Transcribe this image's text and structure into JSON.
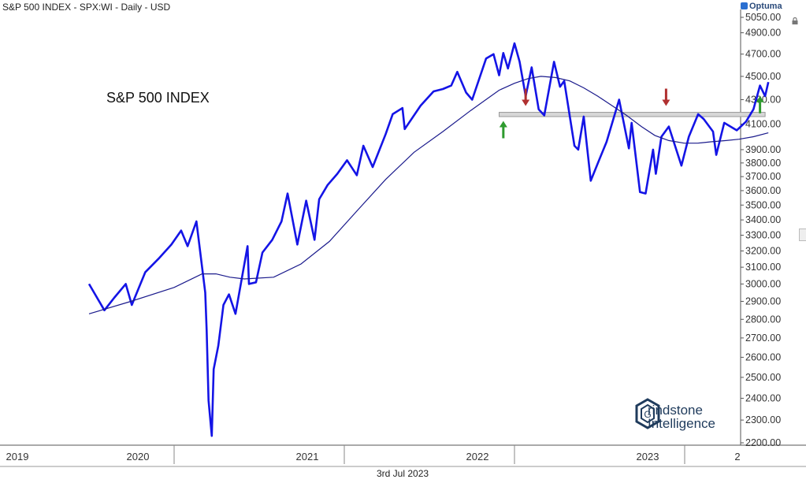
{
  "header": {
    "instrument_line": "S&P 500 INDEX - SPX:WI - Daily - USD",
    "brand": "Optuma"
  },
  "axis_footer": {
    "date_label": "3rd Jul 2023"
  },
  "watermark": {
    "line1": "rindstone",
    "line2": "Intelligence",
    "mark_letter": "G"
  },
  "icons": {
    "lock": "lock-icon",
    "up_arrow": "arrow-up-icon",
    "down_arrow": "arrow-down-icon"
  },
  "colors": {
    "price": "#1414e6",
    "moving_average": "#1a1a8c",
    "band_fill": "#d7d7d7",
    "band_edge": "#9a9a9a",
    "up_arrow": "#2e9b2e",
    "down_arrow": "#b03030",
    "axis_text": "#333333"
  },
  "chart_data": {
    "type": "line",
    "title": "S&P 500 INDEX",
    "xlabel": "",
    "ylabel": "",
    "scale": "log",
    "ylim": [
      2200,
      5100
    ],
    "grid": false,
    "x_tick_labels": [
      "2019",
      "2020",
      "2021",
      "2022",
      "2023",
      "2"
    ],
    "y_tick_values": [
      5050,
      4900,
      4700,
      4500,
      4300,
      4100,
      3900,
      3800,
      3700,
      3600,
      3500,
      3400,
      3300,
      3200,
      3100,
      3000,
      2900,
      2800,
      2700,
      2600,
      2500,
      2400,
      2300,
      2200
    ],
    "y_tick_labels": [
      "5050.00",
      "4900.00",
      "4700.00",
      "4500.00",
      "4300.00",
      "4100.00",
      "3900.00",
      "3800.00",
      "3700.00",
      "3600.00",
      "3500.00",
      "3400.00",
      "3300.00",
      "3200.00",
      "3100.00",
      "3000.00",
      "2900.00",
      "2800.00",
      "2700.00",
      "2600.00",
      "2500.00",
      "2400.00",
      "2300.00",
      "2200.00"
    ],
    "series": [
      {
        "kind": "price",
        "x": [
          "2019-07-03",
          "2019-08-05",
          "2019-08-26",
          "2019-09-20",
          "2019-10-03",
          "2019-11-01",
          "2019-11-29",
          "2019-12-27",
          "2020-01-17",
          "2020-01-31",
          "2020-02-19",
          "2020-03-09",
          "2020-03-12",
          "2020-03-16",
          "2020-03-23",
          "2020-03-27",
          "2020-04-06",
          "2020-04-17",
          "2020-04-29",
          "2020-05-13",
          "2020-06-08",
          "2020-06-11",
          "2020-06-26",
          "2020-07-10",
          "2020-07-31",
          "2020-08-20",
          "2020-09-02",
          "2020-09-23",
          "2020-10-12",
          "2020-10-30",
          "2020-11-09",
          "2020-11-27",
          "2020-12-18",
          "2021-01-08",
          "2021-01-29",
          "2021-02-12",
          "2021-03-04",
          "2021-04-01",
          "2021-04-16",
          "2021-05-07",
          "2021-05-12",
          "2021-06-15",
          "2021-07-13",
          "2021-08-02",
          "2021-08-20",
          "2021-09-02",
          "2021-09-21",
          "2021-10-04",
          "2021-11-03",
          "2021-11-19",
          "2021-12-01",
          "2021-12-10",
          "2021-12-20",
          "2022-01-03",
          "2022-01-14",
          "2022-01-27",
          "2022-02-09",
          "2022-02-24",
          "2022-03-08",
          "2022-03-29",
          "2022-04-11",
          "2022-04-20",
          "2022-05-12",
          "2022-05-20",
          "2022-06-01",
          "2022-06-16",
          "2022-07-05",
          "2022-07-20",
          "2022-08-16",
          "2022-09-06",
          "2022-09-12",
          "2022-09-30",
          "2022-10-12",
          "2022-10-28",
          "2022-11-03",
          "2022-11-15",
          "2022-12-01",
          "2022-12-28",
          "2023-01-13",
          "2023-02-02",
          "2023-02-14",
          "2023-03-06",
          "2023-03-13",
          "2023-03-30",
          "2023-04-26",
          "2023-05-16",
          "2023-06-01",
          "2023-06-15",
          "2023-06-26",
          "2023-07-03"
        ],
        "values": [
          3000,
          2850,
          2920,
          3000,
          2880,
          3070,
          3150,
          3240,
          3330,
          3230,
          3390,
          2950,
          2740,
          2390,
          2230,
          2540,
          2660,
          2880,
          2940,
          2830,
          3230,
          3000,
          3010,
          3190,
          3270,
          3390,
          3580,
          3240,
          3530,
          3270,
          3540,
          3640,
          3720,
          3820,
          3710,
          3930,
          3770,
          4020,
          4180,
          4230,
          4060,
          4250,
          4370,
          4390,
          4420,
          4540,
          4360,
          4300,
          4660,
          4700,
          4510,
          4710,
          4570,
          4800,
          4630,
          4330,
          4580,
          4220,
          4170,
          4630,
          4410,
          4460,
          3930,
          3900,
          4160,
          3670,
          3830,
          3960,
          4300,
          3910,
          4110,
          3590,
          3580,
          3900,
          3720,
          4000,
          4080,
          3780,
          4000,
          4180,
          4140,
          4040,
          3860,
          4110,
          4050,
          4120,
          4220,
          4420,
          4330,
          4450
        ]
      },
      {
        "kind": "moving_average",
        "x": [
          "2019-07-03",
          "2019-10-01",
          "2020-01-02",
          "2020-03-02",
          "2020-04-01",
          "2020-05-01",
          "2020-06-01",
          "2020-08-03",
          "2020-10-01",
          "2020-12-01",
          "2021-02-01",
          "2021-04-01",
          "2021-06-01",
          "2021-08-02",
          "2021-10-01",
          "2021-12-01",
          "2022-01-03",
          "2022-02-01",
          "2022-03-01",
          "2022-04-01",
          "2022-05-02",
          "2022-06-01",
          "2022-07-01",
          "2022-08-01",
          "2022-09-01",
          "2022-10-03",
          "2022-11-01",
          "2022-12-01",
          "2023-01-03",
          "2023-02-01",
          "2023-03-01",
          "2023-04-03",
          "2023-05-01",
          "2023-06-01",
          "2023-07-03"
        ],
        "values": [
          2830,
          2900,
          2980,
          3060,
          3060,
          3040,
          3030,
          3040,
          3120,
          3260,
          3470,
          3680,
          3880,
          4040,
          4210,
          4380,
          4440,
          4480,
          4500,
          4490,
          4460,
          4400,
          4330,
          4250,
          4170,
          4080,
          4010,
          3970,
          3950,
          3950,
          3960,
          3970,
          3980,
          4000,
          4030
        ]
      }
    ],
    "annotations": {
      "resistance_band": {
        "x_start": "2021-12-01",
        "x_end": "2023-06-26",
        "y_low": 4160,
        "y_high": 4195
      },
      "arrows": [
        {
          "x": "2021-12-10",
          "y": 4000,
          "direction": "up"
        },
        {
          "x": "2022-01-27",
          "y": 4380,
          "direction": "down"
        },
        {
          "x": "2022-11-25",
          "y": 4380,
          "direction": "down"
        },
        {
          "x": "2023-06-15",
          "y": 4200,
          "direction": "up"
        }
      ]
    }
  }
}
